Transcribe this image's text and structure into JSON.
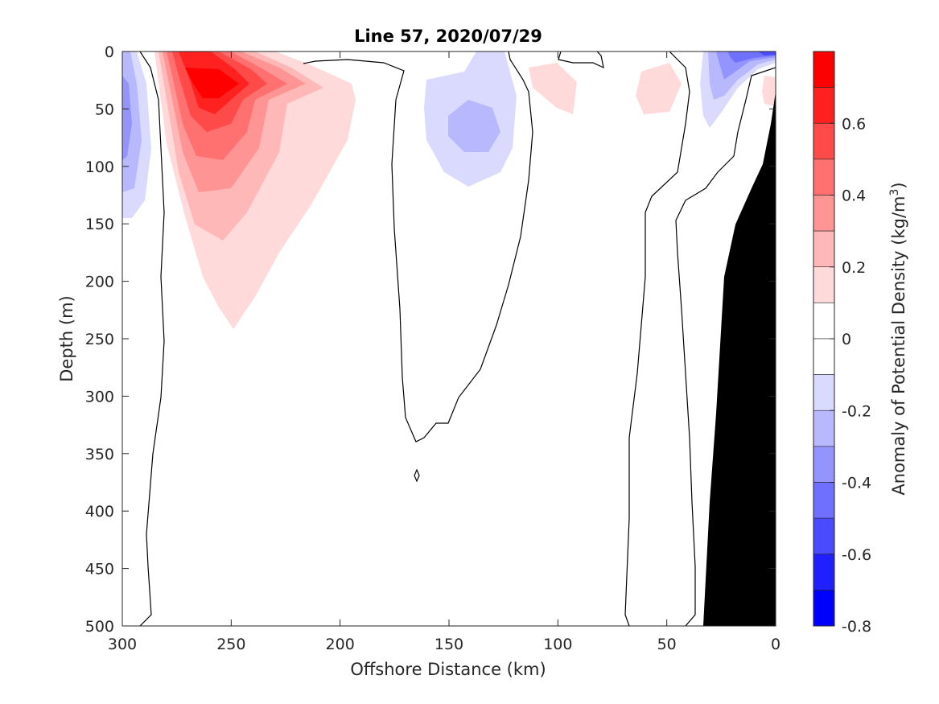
{
  "chart_data": {
    "type": "contour",
    "title": "Line 57, 2020/07/29",
    "xlabel": "Offshore Distance (km)",
    "ylabel": "Depth (m)",
    "xlim": [
      300,
      0
    ],
    "ylim": [
      500,
      0
    ],
    "x_direction": "reversed",
    "y_direction": "reversed (depth increases downward)",
    "xticks": [
      300,
      250,
      200,
      150,
      100,
      50,
      0
    ],
    "yticks": [
      0,
      50,
      100,
      150,
      200,
      250,
      300,
      350,
      400,
      450,
      500
    ],
    "colorbar": {
      "label": "Anomaly of Potential Density (kg/m",
      "label_superscript": "3",
      "label_suffix": ")",
      "range": [
        -0.8,
        0.8
      ],
      "tick_values": [
        0.6,
        0.4,
        0.2,
        0,
        -0.2,
        -0.4,
        -0.6,
        -0.8
      ],
      "tick_labels": [
        "0.6",
        "0.4",
        "0.2",
        "0",
        "-0.2",
        "-0.4",
        "-0.6",
        "-0.8"
      ],
      "levels": [
        {
          "from": 0.7,
          "to": 0.8,
          "color": "#ff0000"
        },
        {
          "from": 0.6,
          "to": 0.7,
          "color": "#ff2020"
        },
        {
          "from": 0.5,
          "to": 0.6,
          "color": "#ff4a4a"
        },
        {
          "from": 0.4,
          "to": 0.5,
          "color": "#ff7070"
        },
        {
          "from": 0.3,
          "to": 0.4,
          "color": "#ff9494"
        },
        {
          "from": 0.2,
          "to": 0.3,
          "color": "#ffb8b8"
        },
        {
          "from": 0.1,
          "to": 0.2,
          "color": "#ffdada"
        },
        {
          "from": 0.0,
          "to": 0.1,
          "color": "#ffffff"
        },
        {
          "from": -0.1,
          "to": 0.0,
          "color": "#ffffff"
        },
        {
          "from": -0.2,
          "to": -0.1,
          "color": "#dadaff"
        },
        {
          "from": -0.3,
          "to": -0.2,
          "color": "#b8b8ff"
        },
        {
          "from": -0.4,
          "to": -0.3,
          "color": "#9494ff"
        },
        {
          "from": -0.5,
          "to": -0.4,
          "color": "#7070ff"
        },
        {
          "from": -0.6,
          "to": -0.5,
          "color": "#4a4aff"
        },
        {
          "from": -0.7,
          "to": -0.6,
          "color": "#2020ff"
        },
        {
          "from": -0.8,
          "to": -0.7,
          "color": "#0000ff"
        }
      ]
    },
    "bathymetry_color": "#000000",
    "features": [
      {
        "kind": "positive anomaly core",
        "max_value": 0.75,
        "center_km": 255,
        "center_depth_m": 30,
        "deepest_extent_m": 240
      },
      {
        "kind": "negative anomaly",
        "min_value": -0.3,
        "center_km": 135,
        "center_depth_m": 65
      },
      {
        "kind": "negative anomaly near coast",
        "min_value": -0.5,
        "center_km": 20,
        "center_depth_m": 10
      },
      {
        "kind": "negative anomaly offshore edge",
        "min_value": -0.3,
        "center_km": 298,
        "center_depth_m": 60
      }
    ]
  }
}
